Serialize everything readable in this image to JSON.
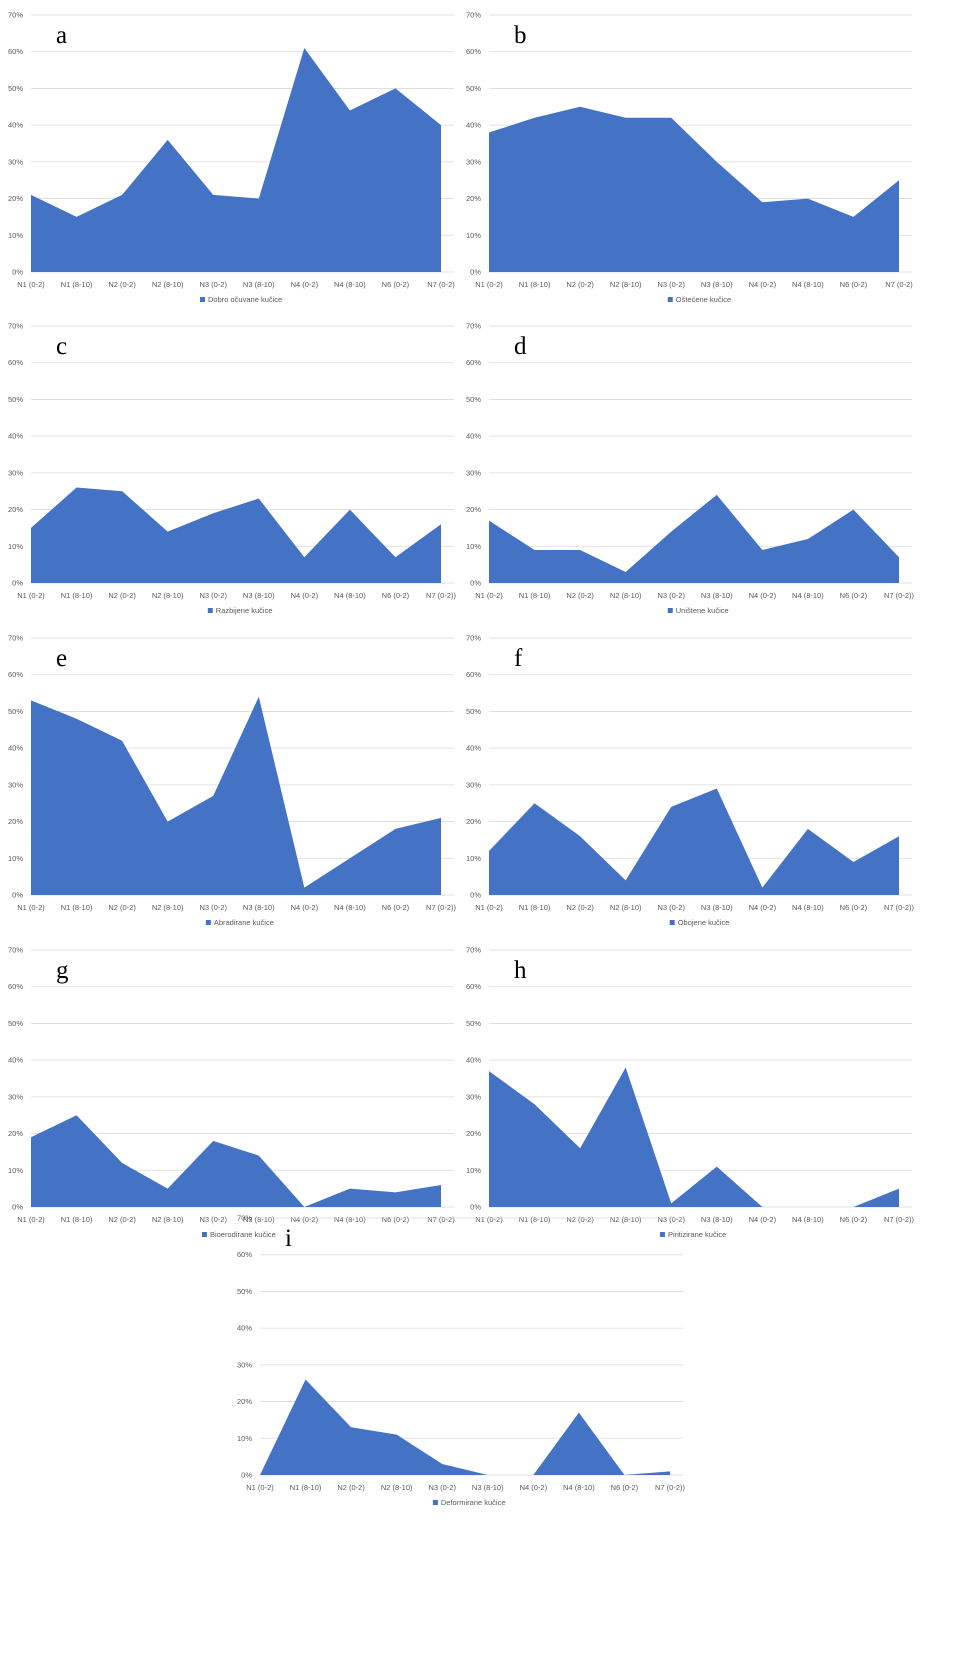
{
  "y_ticks": [
    "0%",
    "10%",
    "20%",
    "30%",
    "40%",
    "50%",
    "60%",
    "70%"
  ],
  "colors": {
    "area": "#4472C4",
    "grid": "#D9D9D9",
    "tick_text": "#595959"
  },
  "chart_data": [
    {
      "type": "area",
      "panel_label": "a",
      "categories": [
        "N1 (0-2)",
        "N1 (8-10)",
        "N2 (0-2)",
        "N2 (8-10)",
        "N3 (0-2)",
        "N3 (8-10)",
        "N4 (0-2)",
        "N4 (8-10)",
        "N6 (0-2)",
        "N7 (0-2)"
      ],
      "series": [
        {
          "name": "Dobro očuvane kučice",
          "values": [
            21,
            15,
            21,
            36,
            21,
            20,
            61,
            44,
            50,
            40
          ]
        }
      ],
      "ylim": [
        0,
        70
      ],
      "grid": true,
      "legend": "bottom"
    },
    {
      "type": "area",
      "panel_label": "b",
      "categories": [
        "N1 (0-2)",
        "N1 (8-10)",
        "N2 (0-2)",
        "N2 (8-10)",
        "N3 (0-2)",
        "N3 (8-10)",
        "N4 (0-2)",
        "N4 (8-10)",
        "N6 (0-2)",
        "N7 (0-2)"
      ],
      "series": [
        {
          "name": "Oštećene kučice",
          "values": [
            38,
            42,
            45,
            42,
            42,
            30,
            19,
            20,
            15,
            25
          ]
        }
      ],
      "ylim": [
        0,
        70
      ],
      "grid": true,
      "legend": "bottom"
    },
    {
      "type": "area",
      "panel_label": "c",
      "categories": [
        "N1 (0-2)",
        "N1 (8-10)",
        "N2 (0-2)",
        "N2 (8-10)",
        "N3 (0-2)",
        "N3 (8-10)",
        "N4 (0-2)",
        "N4 (8-10)",
        "N6 (0-2)",
        "N7 (0-2))"
      ],
      "series": [
        {
          "name": "Razbijene kučice",
          "values": [
            15,
            26,
            25,
            14,
            19,
            23,
            7,
            20,
            7,
            16
          ]
        }
      ],
      "ylim": [
        0,
        70
      ],
      "grid": true,
      "legend": "bottom"
    },
    {
      "type": "area",
      "panel_label": "d",
      "categories": [
        "N1 (0-2)",
        "N1 (8-10)",
        "N2 (0-2)",
        "N2 (8-10)",
        "N3 (0-2)",
        "N3 (8-10)",
        "N4 (0-2)",
        "N4 (8-10)",
        "N6 (0-2)",
        "N7 (0-2))"
      ],
      "series": [
        {
          "name": "Uništene kučice",
          "values": [
            17,
            9,
            9,
            3,
            14,
            24,
            9,
            12,
            20,
            7
          ]
        }
      ],
      "ylim": [
        0,
        70
      ],
      "grid": true,
      "legend": "bottom"
    },
    {
      "type": "area",
      "panel_label": "e",
      "categories": [
        "N1 (0-2)",
        "N1 (8-10)",
        "N2 (0-2)",
        "N2 (8-10)",
        "N3 (0-2)",
        "N3 (8-10)",
        "N4 (0-2)",
        "N4 (8-10)",
        "N6 (0-2)",
        "N7 (0-2))"
      ],
      "series": [
        {
          "name": "Abradirane kučice",
          "values": [
            53,
            48,
            42,
            20,
            27,
            54,
            2,
            10,
            18,
            21
          ]
        }
      ],
      "ylim": [
        0,
        70
      ],
      "grid": true,
      "legend": "bottom"
    },
    {
      "type": "area",
      "panel_label": "f",
      "categories": [
        "N1 (0-2)",
        "N1 (8-10)",
        "N2 (0-2)",
        "N2 (8-10)",
        "N3 (0-2)",
        "N3 (8-10)",
        "N4 (0-2)",
        "N4 (8-10)",
        "N6 (0-2)",
        "N7 (0-2))"
      ],
      "series": [
        {
          "name": "Obojene kučice",
          "values": [
            12,
            25,
            16,
            4,
            24,
            29,
            2,
            18,
            9,
            16
          ]
        }
      ],
      "ylim": [
        0,
        70
      ],
      "grid": true,
      "legend": "bottom"
    },
    {
      "type": "area",
      "panel_label": "g",
      "categories": [
        "N1 (0-2)",
        "N1 (8-10)",
        "N2 (0-2)",
        "N2 (8-10)",
        "N3 (0-2)",
        "N3 (8-10)",
        "N4 (0-2)",
        "N4 (8-10)",
        "N6 (0-2)",
        "N7 (0-2)"
      ],
      "series": [
        {
          "name": "Bioerodirane kučice",
          "values": [
            19,
            25,
            12,
            5,
            18,
            14,
            0,
            5,
            4,
            6
          ]
        }
      ],
      "ylim": [
        0,
        70
      ],
      "grid": true,
      "legend": "bottom"
    },
    {
      "type": "area",
      "panel_label": "h",
      "categories": [
        "N1 (0-2)",
        "N1 (8-10)",
        "N2 (0-2)",
        "N2 (8-10)",
        "N3 (0-2)",
        "N3 (8-10)",
        "N4 (0-2)",
        "N4 (8-10)",
        "N6 (0-2)",
        "N7 (0-2))"
      ],
      "series": [
        {
          "name": "Piritizirane kučice",
          "values": [
            37,
            28,
            16,
            38,
            1,
            11,
            0,
            0,
            0,
            5
          ]
        }
      ],
      "ylim": [
        0,
        70
      ],
      "grid": true,
      "legend": "bottom"
    },
    {
      "type": "area",
      "panel_label": "i",
      "categories": [
        "N1 (0-2)",
        "N1 (8-10)",
        "N2 (0-2)",
        "N2 (8-10)",
        "N3 (0-2)",
        "N3 (8-10)",
        "N4 (0-2)",
        "N4 (8-10)",
        "N6 (0-2)",
        "N7 (0-2))"
      ],
      "series": [
        {
          "name": "Deformirane kučice",
          "values": [
            0,
            26,
            13,
            11,
            3,
            0,
            0,
            17,
            0,
            1
          ]
        }
      ],
      "ylim": [
        0,
        70
      ],
      "grid": true,
      "legend": "bottom"
    }
  ]
}
